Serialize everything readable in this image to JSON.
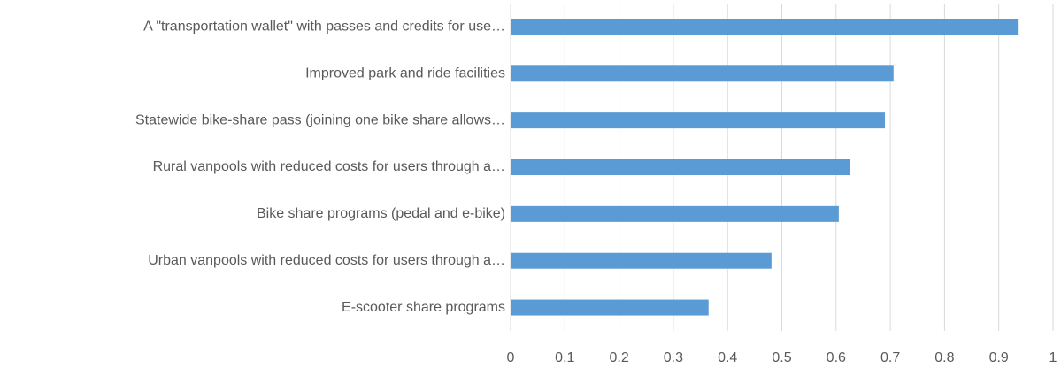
{
  "chart_data": {
    "type": "bar",
    "orientation": "horizontal",
    "categories": [
      "A \"transportation wallet\" with passes and credits for use…",
      "Improved park and ride facilities",
      "Statewide bike-share pass (joining one bike share allows…",
      "Rural vanpools with reduced costs for users through a…",
      "Bike share programs (pedal and e-bike)",
      "Urban vanpools with reduced costs for users through a…",
      "E-scooter share programs"
    ],
    "values": [
      0.935,
      0.706,
      0.69,
      0.626,
      0.605,
      0.481,
      0.365
    ],
    "color": "#5b9bd5",
    "xlim": [
      0,
      1
    ],
    "xticks": [
      0,
      0.1,
      0.2,
      0.3,
      0.4,
      0.5,
      0.6,
      0.7,
      0.8,
      0.9,
      1
    ],
    "grid": true
  }
}
